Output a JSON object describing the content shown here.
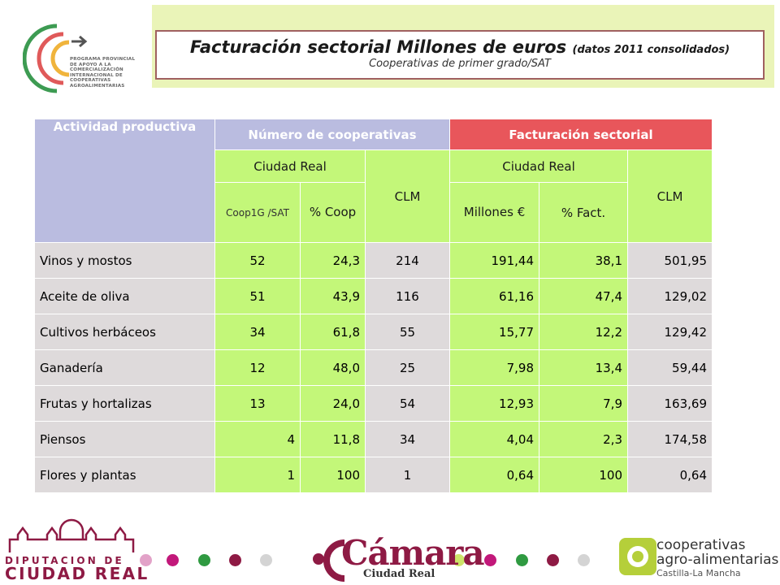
{
  "header": {
    "title_main": "Facturación sectorial  Millones de euros",
    "title_note": "(datos 2011 consolidados)",
    "subtitle": "Cooperativas de primer grado/SAT"
  },
  "program_logo": {
    "lines": [
      "PROGRAMA PROVINCIAL",
      "DE APOYO A LA",
      "COMERCIALIZACIÓN",
      "INTERNACIONAL DE",
      "COOPERATIVAS",
      "AGROALIMENTARIAS"
    ],
    "arrow_color": "#555555"
  },
  "table": {
    "col_actividad": "Actividad productiva",
    "group_num": "Número de cooperativas",
    "group_fac": "Facturación sectorial",
    "sub_cr_num": "Ciudad Real",
    "sub_clm_num": "CLM",
    "sub_cr_fac": "Ciudad Real",
    "sub_clm_fac": "CLM",
    "col_coop": "Coop1G /SAT",
    "col_pct_coop": "% Coop",
    "col_millones": "Millones €",
    "col_pct_fact": "% Fact.",
    "rows": [
      {
        "actividad": "Vinos y mostos",
        "coop": "52",
        "pct_coop": "24,3",
        "clm_num": "214",
        "millones": "191,44",
        "pct_fact": "38,1",
        "clm_fac": "501,95"
      },
      {
        "actividad": "Aceite de oliva",
        "coop": "51",
        "pct_coop": "43,9",
        "clm_num": "116",
        "millones": "61,16",
        "pct_fact": "47,4",
        "clm_fac": "129,02"
      },
      {
        "actividad": "Cultivos herbáceos",
        "coop": "34",
        "pct_coop": "61,8",
        "clm_num": "55",
        "millones": "15,77",
        "pct_fact": "12,2",
        "clm_fac": "129,42"
      },
      {
        "actividad": "Ganadería",
        "coop": "12",
        "pct_coop": "48,0",
        "clm_num": "25",
        "millones": "7,98",
        "pct_fact": "13,4",
        "clm_fac": "59,44"
      },
      {
        "actividad": "Frutas y hortalizas",
        "coop": "13",
        "pct_coop": "24,0",
        "clm_num": "54",
        "millones": "12,93",
        "pct_fact": "7,9",
        "clm_fac": "163,69"
      },
      {
        "actividad": "Piensos",
        "coop": "4",
        "pct_coop": "11,8",
        "clm_num": "34",
        "millones": "4,04",
        "pct_fact": "2,3",
        "clm_fac": "174,58"
      },
      {
        "actividad": "Flores y plantas",
        "coop": "1",
        "pct_coop": "100",
        "clm_num": "1",
        "millones": "0,64",
        "pct_fact": "100",
        "clm_fac": "0,64"
      }
    ]
  },
  "footer": {
    "diputacion_line1": "DIPUTACION DE",
    "diputacion_line2": "CIUDAD REAL",
    "camara_name": "Cámara",
    "camara_sub": "Ciudad Real",
    "coop_line1": "cooperativas",
    "coop_line2": "agro-alimentarias",
    "coop_line3": "Castilla-La Mancha",
    "dot_colors_left": [
      "#e2a2c8",
      "#c2187a",
      "#2f9a41",
      "#8e1a44",
      "#d4d4d4"
    ],
    "dot_colors_right": [
      "#cde36a",
      "#c2187a",
      "#2f9a41",
      "#8e1a44",
      "#d4d4d4"
    ]
  }
}
